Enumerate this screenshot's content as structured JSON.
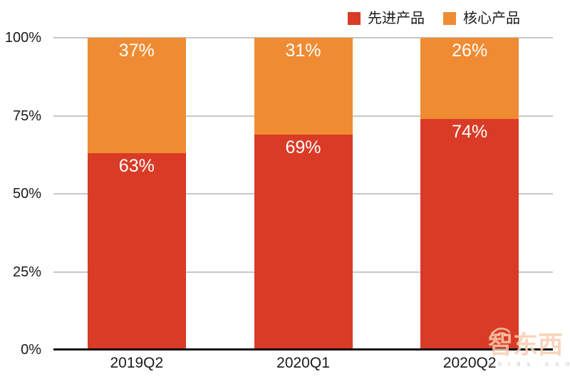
{
  "chart_data": {
    "type": "bar",
    "stacked": true,
    "title": "",
    "xlabel": "",
    "ylabel": "",
    "categories": [
      "2019Q2",
      "2020Q1",
      "2020Q2"
    ],
    "series": [
      {
        "name": "先进产品",
        "color": "#d93b26",
        "values": [
          63,
          69,
          74
        ]
      },
      {
        "name": "核心产品",
        "color": "#ef8b33",
        "values": [
          37,
          31,
          26
        ]
      }
    ],
    "value_suffix": "%",
    "y_ticks": [
      0,
      25,
      50,
      75,
      100
    ],
    "y_tick_suffix": "%",
    "ylim": [
      0,
      100
    ],
    "grid": true,
    "legend_position": "top-right"
  },
  "colors": {
    "series_advanced": "#d93b26",
    "series_core": "#ef8b33",
    "gridline": "#c7c7c7",
    "axis_line": "#111111",
    "label_on_bar": "#ffffff",
    "text": "#1a1a1a"
  },
  "watermark": {
    "brand": "智东西",
    "site": "zhidx.com",
    "site_display": "z h i d x . c o m"
  }
}
